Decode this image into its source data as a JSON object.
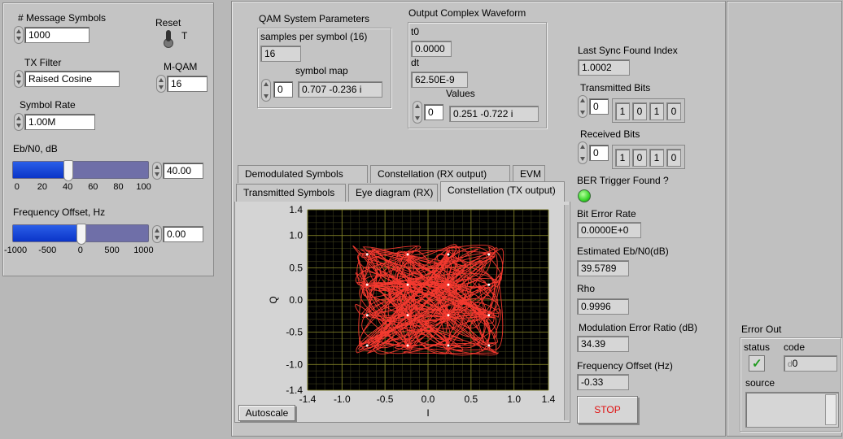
{
  "left": {
    "msg_symbols_label": "# Message Symbols",
    "msg_symbols_value": "1000",
    "reset_label": "Reset",
    "reset_state": "T",
    "tx_filter_label": "TX Filter",
    "tx_filter_value": "Raised Cosine",
    "mqam_label": "M-QAM",
    "mqam_value": "16",
    "symbol_rate_label": "Symbol Rate",
    "symbol_rate_value": "1.00M",
    "ebno_label": "Eb/N0, dB",
    "ebno_value": "40.00",
    "ebno_fraction": 0.4,
    "ebno_ticks": [
      "0",
      "20",
      "40",
      "60",
      "80",
      "100"
    ],
    "freq_label": "Frequency Offset, Hz",
    "freq_value": "0.00",
    "freq_fraction": 0.5,
    "freq_ticks": [
      "-1000",
      "-500",
      "0",
      "500",
      "1000"
    ]
  },
  "qam": {
    "title": "QAM System Parameters",
    "sps_label": "samples per symbol (16)",
    "sps_value": "16",
    "map_label": "symbol map",
    "map_index": "0",
    "map_value": "0.707 -0.236 i"
  },
  "wave": {
    "title": "Output Complex Waveform",
    "t0_label": "t0",
    "t0_value": "0.0000",
    "dt_label": "dt",
    "dt_value": "62.50E-9",
    "values_label": "Values",
    "values_index": "0",
    "values_value": "0.251 -0.722 i"
  },
  "tabs": {
    "row1": [
      "Demodulated Symbols",
      "Constellation (RX output)",
      "EVM"
    ],
    "row2": [
      "Transmitted Symbols",
      "Eye diagram (RX)",
      "Constellation (TX output)"
    ],
    "autoscale": "Autoscale"
  },
  "chart_data": {
    "type": "scatter",
    "title": "",
    "xlabel": "I",
    "ylabel": "Q",
    "xlim": [
      -1.4,
      1.4
    ],
    "ylim": [
      -1.4,
      1.4
    ],
    "x_ticks": [
      "-1.4",
      "-1.0",
      "-0.5",
      "0.0",
      "0.5",
      "1.0",
      "1.4"
    ],
    "y_ticks": [
      "1.4",
      "1.0",
      "0.5",
      "0.0",
      "-0.5",
      "-1.0",
      "-1.4"
    ],
    "grid": true,
    "trace_color": "#ff3b30",
    "point_color": "#ffffff",
    "constellation_points": [
      {
        "x": -0.707,
        "y": 0.707
      },
      {
        "x": -0.236,
        "y": 0.707
      },
      {
        "x": 0.236,
        "y": 0.707
      },
      {
        "x": 0.707,
        "y": 0.707
      },
      {
        "x": -0.707,
        "y": 0.236
      },
      {
        "x": -0.236,
        "y": 0.236
      },
      {
        "x": 0.236,
        "y": 0.236
      },
      {
        "x": 0.707,
        "y": 0.236
      },
      {
        "x": -0.707,
        "y": -0.236
      },
      {
        "x": -0.236,
        "y": -0.236
      },
      {
        "x": 0.236,
        "y": -0.236
      },
      {
        "x": 0.707,
        "y": -0.236
      },
      {
        "x": -0.707,
        "y": -0.707
      },
      {
        "x": -0.236,
        "y": -0.707
      },
      {
        "x": 0.236,
        "y": -0.707
      },
      {
        "x": 0.707,
        "y": -0.707
      }
    ]
  },
  "right": {
    "sync_label": "Last Sync Found Index",
    "sync_value": "1.0002",
    "tx_bits_label": "Transmitted Bits",
    "tx_bits_index": "0",
    "tx_bits": [
      "1",
      "0",
      "1",
      "0"
    ],
    "rx_bits_label": "Received Bits",
    "rx_bits_index": "0",
    "rx_bits": [
      "1",
      "0",
      "1",
      "0"
    ],
    "ber_trigger_label": "BER Trigger Found ?",
    "led_color": "#39d62b",
    "ber_label": "Bit Error Rate",
    "ber_value": "0.0000E+0",
    "est_ebno_label": "Estimated Eb/N0(dB)",
    "est_ebno_value": "39.5789",
    "rho_label": "Rho",
    "rho_value": "0.9996",
    "mer_label": "Modulation Error Ratio (dB)",
    "mer_value": "34.39",
    "fo_label": "Frequency Offset (Hz)",
    "fo_value": "-0.33",
    "stop_label": "STOP"
  },
  "error_out": {
    "title": "Error Out",
    "status_label": "status",
    "code_label": "code",
    "code_value": "0",
    "code_prefix": "d",
    "source_label": "source"
  }
}
